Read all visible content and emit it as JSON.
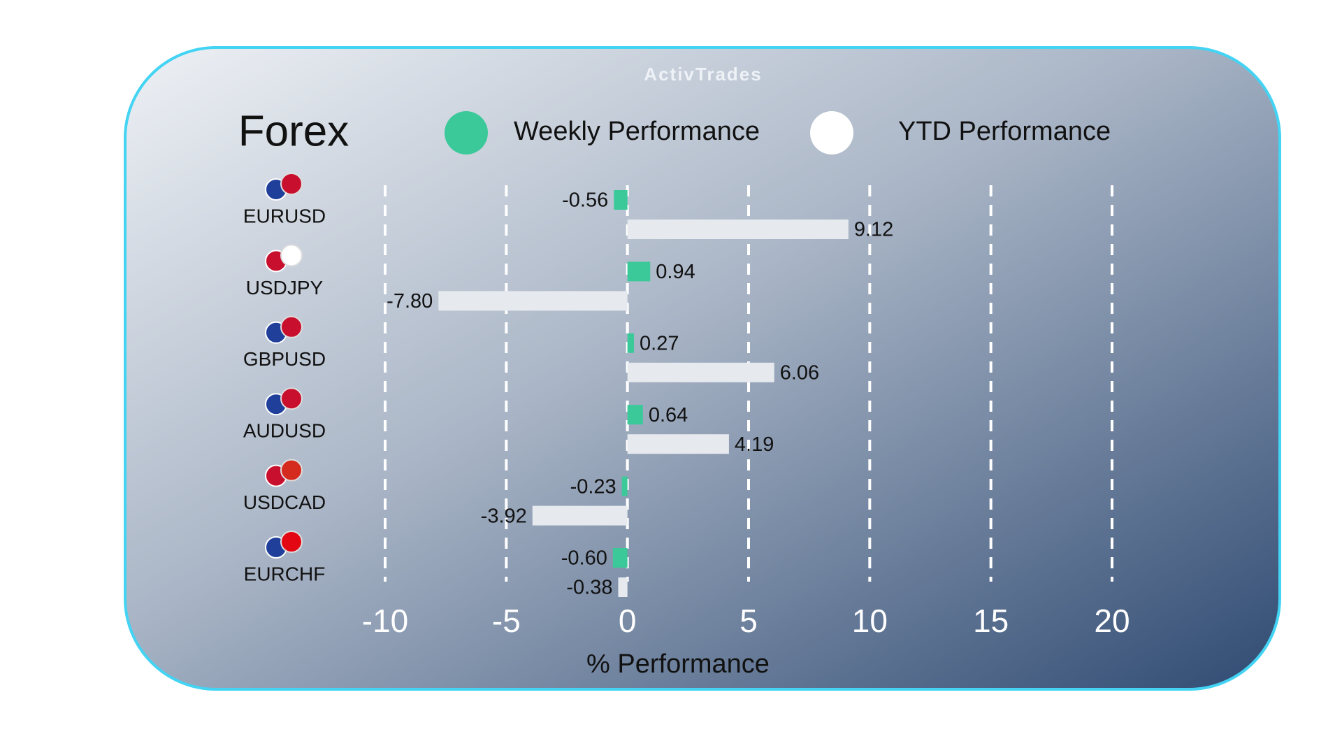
{
  "chart_data": {
    "type": "bar",
    "orientation": "horizontal",
    "brand": "ActivTrades",
    "title": "Forex",
    "x_label": "% Performance",
    "categories": [
      "EURUSD",
      "USDJPY",
      "GBPUSD",
      "AUDUSD",
      "USDCAD",
      "EURCHF"
    ],
    "series": [
      {
        "name": "Weekly Performance",
        "color": "#3cc99a",
        "values": [
          -0.56,
          0.94,
          0.27,
          0.64,
          -0.23,
          -0.6
        ],
        "value_labels": [
          "-0.56",
          "0.94",
          "0.27",
          "0.64",
          "-0.23",
          "-0.60"
        ]
      },
      {
        "name": "YTD Performance",
        "color": "#e6e9ee",
        "values": [
          9.12,
          -7.8,
          6.06,
          4.19,
          -3.92,
          -0.38
        ],
        "value_labels": [
          "9.12",
          "-7.80",
          "6.06",
          "4.19",
          "-3.92",
          "-0.38"
        ]
      }
    ],
    "xlim": [
      -10,
      20
    ],
    "xticks": [
      -10,
      -5,
      0,
      5,
      10,
      15,
      20
    ],
    "grid": true
  }
}
